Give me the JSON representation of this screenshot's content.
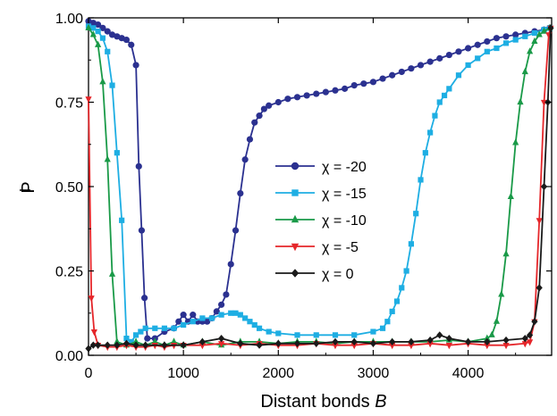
{
  "chart_data": {
    "type": "line",
    "xlabel": "Distant bonds B",
    "xlabel_main": "Distant bonds ",
    "xlabel_var": "B",
    "ylabel": "P̄",
    "ylabel_main": "P",
    "xlim": [
      0,
      4880
    ],
    "ylim": [
      0,
      1.0
    ],
    "xticks": [
      0,
      1000,
      2000,
      3000,
      4000
    ],
    "yticks": [
      0.0,
      0.25,
      0.5,
      0.75,
      1.0
    ],
    "xtick_labels": [
      "0",
      "1000",
      "2000",
      "3000",
      "4000"
    ],
    "ytick_labels": [
      "0.00",
      "0.25",
      "0.50",
      "0.75",
      "1.00"
    ],
    "legend_position": "center",
    "series": [
      {
        "name": "χ = -20",
        "color": "#2b3190",
        "marker": "circle",
        "points": [
          [
            0,
            0.99
          ],
          [
            50,
            0.985
          ],
          [
            100,
            0.98
          ],
          [
            150,
            0.97
          ],
          [
            200,
            0.96
          ],
          [
            250,
            0.95
          ],
          [
            300,
            0.945
          ],
          [
            350,
            0.94
          ],
          [
            400,
            0.935
          ],
          [
            450,
            0.92
          ],
          [
            500,
            0.86
          ],
          [
            530,
            0.56
          ],
          [
            560,
            0.37
          ],
          [
            590,
            0.17
          ],
          [
            620,
            0.05
          ],
          [
            700,
            0.05
          ],
          [
            800,
            0.07
          ],
          [
            900,
            0.08
          ],
          [
            950,
            0.1
          ],
          [
            1000,
            0.12
          ],
          [
            1050,
            0.1
          ],
          [
            1100,
            0.12
          ],
          [
            1150,
            0.1
          ],
          [
            1200,
            0.1
          ],
          [
            1250,
            0.1
          ],
          [
            1300,
            0.11
          ],
          [
            1350,
            0.13
          ],
          [
            1400,
            0.15
          ],
          [
            1450,
            0.18
          ],
          [
            1500,
            0.27
          ],
          [
            1550,
            0.37
          ],
          [
            1600,
            0.48
          ],
          [
            1650,
            0.58
          ],
          [
            1700,
            0.64
          ],
          [
            1750,
            0.69
          ],
          [
            1800,
            0.71
          ],
          [
            1850,
            0.73
          ],
          [
            1900,
            0.74
          ],
          [
            2000,
            0.75
          ],
          [
            2100,
            0.76
          ],
          [
            2200,
            0.765
          ],
          [
            2300,
            0.77
          ],
          [
            2400,
            0.775
          ],
          [
            2500,
            0.78
          ],
          [
            2600,
            0.785
          ],
          [
            2700,
            0.79
          ],
          [
            2800,
            0.8
          ],
          [
            2900,
            0.805
          ],
          [
            3000,
            0.81
          ],
          [
            3100,
            0.82
          ],
          [
            3200,
            0.83
          ],
          [
            3300,
            0.84
          ],
          [
            3400,
            0.85
          ],
          [
            3500,
            0.86
          ],
          [
            3600,
            0.87
          ],
          [
            3700,
            0.88
          ],
          [
            3800,
            0.89
          ],
          [
            3900,
            0.9
          ],
          [
            4000,
            0.91
          ],
          [
            4100,
            0.92
          ],
          [
            4200,
            0.93
          ],
          [
            4300,
            0.94
          ],
          [
            4400,
            0.945
          ],
          [
            4500,
            0.95
          ],
          [
            4600,
            0.955
          ],
          [
            4700,
            0.96
          ],
          [
            4800,
            0.965
          ],
          [
            4860,
            0.97
          ]
        ]
      },
      {
        "name": "χ = -15",
        "color": "#1eaee3",
        "marker": "square",
        "points": [
          [
            0,
            0.975
          ],
          [
            50,
            0.97
          ],
          [
            100,
            0.96
          ],
          [
            150,
            0.94
          ],
          [
            200,
            0.9
          ],
          [
            250,
            0.8
          ],
          [
            300,
            0.6
          ],
          [
            350,
            0.4
          ],
          [
            400,
            0.05
          ],
          [
            450,
            0.04
          ],
          [
            500,
            0.06
          ],
          [
            550,
            0.07
          ],
          [
            600,
            0.08
          ],
          [
            700,
            0.08
          ],
          [
            800,
            0.08
          ],
          [
            900,
            0.08
          ],
          [
            1000,
            0.09
          ],
          [
            1100,
            0.1
          ],
          [
            1200,
            0.11
          ],
          [
            1300,
            0.11
          ],
          [
            1400,
            0.12
          ],
          [
            1500,
            0.125
          ],
          [
            1550,
            0.125
          ],
          [
            1600,
            0.12
          ],
          [
            1650,
            0.11
          ],
          [
            1700,
            0.1
          ],
          [
            1750,
            0.09
          ],
          [
            1800,
            0.08
          ],
          [
            1900,
            0.07
          ],
          [
            2000,
            0.065
          ],
          [
            2200,
            0.06
          ],
          [
            2400,
            0.06
          ],
          [
            2600,
            0.06
          ],
          [
            2800,
            0.06
          ],
          [
            3000,
            0.07
          ],
          [
            3100,
            0.08
          ],
          [
            3150,
            0.1
          ],
          [
            3200,
            0.13
          ],
          [
            3250,
            0.16
          ],
          [
            3300,
            0.2
          ],
          [
            3350,
            0.25
          ],
          [
            3400,
            0.33
          ],
          [
            3450,
            0.42
          ],
          [
            3500,
            0.52
          ],
          [
            3550,
            0.6
          ],
          [
            3600,
            0.66
          ],
          [
            3650,
            0.71
          ],
          [
            3700,
            0.75
          ],
          [
            3750,
            0.77
          ],
          [
            3800,
            0.79
          ],
          [
            3900,
            0.83
          ],
          [
            4000,
            0.86
          ],
          [
            4100,
            0.88
          ],
          [
            4200,
            0.9
          ],
          [
            4300,
            0.91
          ],
          [
            4400,
            0.925
          ],
          [
            4500,
            0.935
          ],
          [
            4600,
            0.945
          ],
          [
            4700,
            0.955
          ],
          [
            4800,
            0.965
          ],
          [
            4860,
            0.97
          ]
        ]
      },
      {
        "name": "χ = -10",
        "color": "#1a9a48",
        "marker": "triangle-up",
        "points": [
          [
            0,
            0.97
          ],
          [
            50,
            0.95
          ],
          [
            100,
            0.92
          ],
          [
            150,
            0.81
          ],
          [
            200,
            0.58
          ],
          [
            250,
            0.24
          ],
          [
            300,
            0.04
          ],
          [
            400,
            0.03
          ],
          [
            500,
            0.04
          ],
          [
            600,
            0.03
          ],
          [
            700,
            0.04
          ],
          [
            800,
            0.03
          ],
          [
            900,
            0.04
          ],
          [
            1000,
            0.03
          ],
          [
            1200,
            0.04
          ],
          [
            1400,
            0.03
          ],
          [
            1600,
            0.04
          ],
          [
            1800,
            0.04
          ],
          [
            2000,
            0.035
          ],
          [
            2200,
            0.04
          ],
          [
            2400,
            0.04
          ],
          [
            2600,
            0.035
          ],
          [
            2800,
            0.04
          ],
          [
            3000,
            0.04
          ],
          [
            3200,
            0.04
          ],
          [
            3400,
            0.04
          ],
          [
            3600,
            0.04
          ],
          [
            3800,
            0.045
          ],
          [
            4000,
            0.04
          ],
          [
            4200,
            0.05
          ],
          [
            4250,
            0.06
          ],
          [
            4300,
            0.1
          ],
          [
            4350,
            0.18
          ],
          [
            4400,
            0.3
          ],
          [
            4450,
            0.47
          ],
          [
            4500,
            0.63
          ],
          [
            4550,
            0.75
          ],
          [
            4600,
            0.84
          ],
          [
            4650,
            0.9
          ],
          [
            4700,
            0.93
          ],
          [
            4750,
            0.95
          ],
          [
            4800,
            0.96
          ],
          [
            4860,
            0.97
          ]
        ]
      },
      {
        "name": "χ = -5",
        "color": "#e5262a",
        "marker": "triangle-down",
        "points": [
          [
            0,
            0.76
          ],
          [
            30,
            0.17
          ],
          [
            60,
            0.07
          ],
          [
            100,
            0.03
          ],
          [
            200,
            0.025
          ],
          [
            300,
            0.025
          ],
          [
            400,
            0.03
          ],
          [
            500,
            0.025
          ],
          [
            600,
            0.025
          ],
          [
            700,
            0.03
          ],
          [
            800,
            0.025
          ],
          [
            900,
            0.03
          ],
          [
            1000,
            0.03
          ],
          [
            1200,
            0.03
          ],
          [
            1400,
            0.035
          ],
          [
            1600,
            0.03
          ],
          [
            1800,
            0.035
          ],
          [
            2000,
            0.03
          ],
          [
            2200,
            0.03
          ],
          [
            2400,
            0.035
          ],
          [
            2600,
            0.03
          ],
          [
            2800,
            0.03
          ],
          [
            3000,
            0.035
          ],
          [
            3200,
            0.03
          ],
          [
            3400,
            0.03
          ],
          [
            3600,
            0.035
          ],
          [
            3800,
            0.03
          ],
          [
            4000,
            0.035
          ],
          [
            4200,
            0.03
          ],
          [
            4400,
            0.03
          ],
          [
            4600,
            0.035
          ],
          [
            4650,
            0.04
          ],
          [
            4700,
            0.1
          ],
          [
            4750,
            0.4
          ],
          [
            4800,
            0.75
          ],
          [
            4850,
            0.95
          ],
          [
            4870,
            0.97
          ]
        ]
      },
      {
        "name": "χ = 0",
        "color": "#1a1a1a",
        "marker": "diamond",
        "points": [
          [
            0,
            0.02
          ],
          [
            50,
            0.03
          ],
          [
            100,
            0.03
          ],
          [
            200,
            0.03
          ],
          [
            300,
            0.03
          ],
          [
            400,
            0.035
          ],
          [
            500,
            0.03
          ],
          [
            600,
            0.03
          ],
          [
            800,
            0.03
          ],
          [
            1000,
            0.03
          ],
          [
            1200,
            0.04
          ],
          [
            1400,
            0.05
          ],
          [
            1600,
            0.035
          ],
          [
            1800,
            0.03
          ],
          [
            2000,
            0.035
          ],
          [
            2200,
            0.035
          ],
          [
            2400,
            0.035
          ],
          [
            2600,
            0.04
          ],
          [
            2800,
            0.04
          ],
          [
            3000,
            0.035
          ],
          [
            3200,
            0.04
          ],
          [
            3400,
            0.04
          ],
          [
            3600,
            0.045
          ],
          [
            3700,
            0.06
          ],
          [
            3800,
            0.05
          ],
          [
            4000,
            0.04
          ],
          [
            4200,
            0.04
          ],
          [
            4400,
            0.045
          ],
          [
            4600,
            0.05
          ],
          [
            4650,
            0.06
          ],
          [
            4700,
            0.1
          ],
          [
            4750,
            0.2
          ],
          [
            4800,
            0.5
          ],
          [
            4840,
            0.75
          ],
          [
            4870,
            0.97
          ]
        ]
      }
    ]
  }
}
